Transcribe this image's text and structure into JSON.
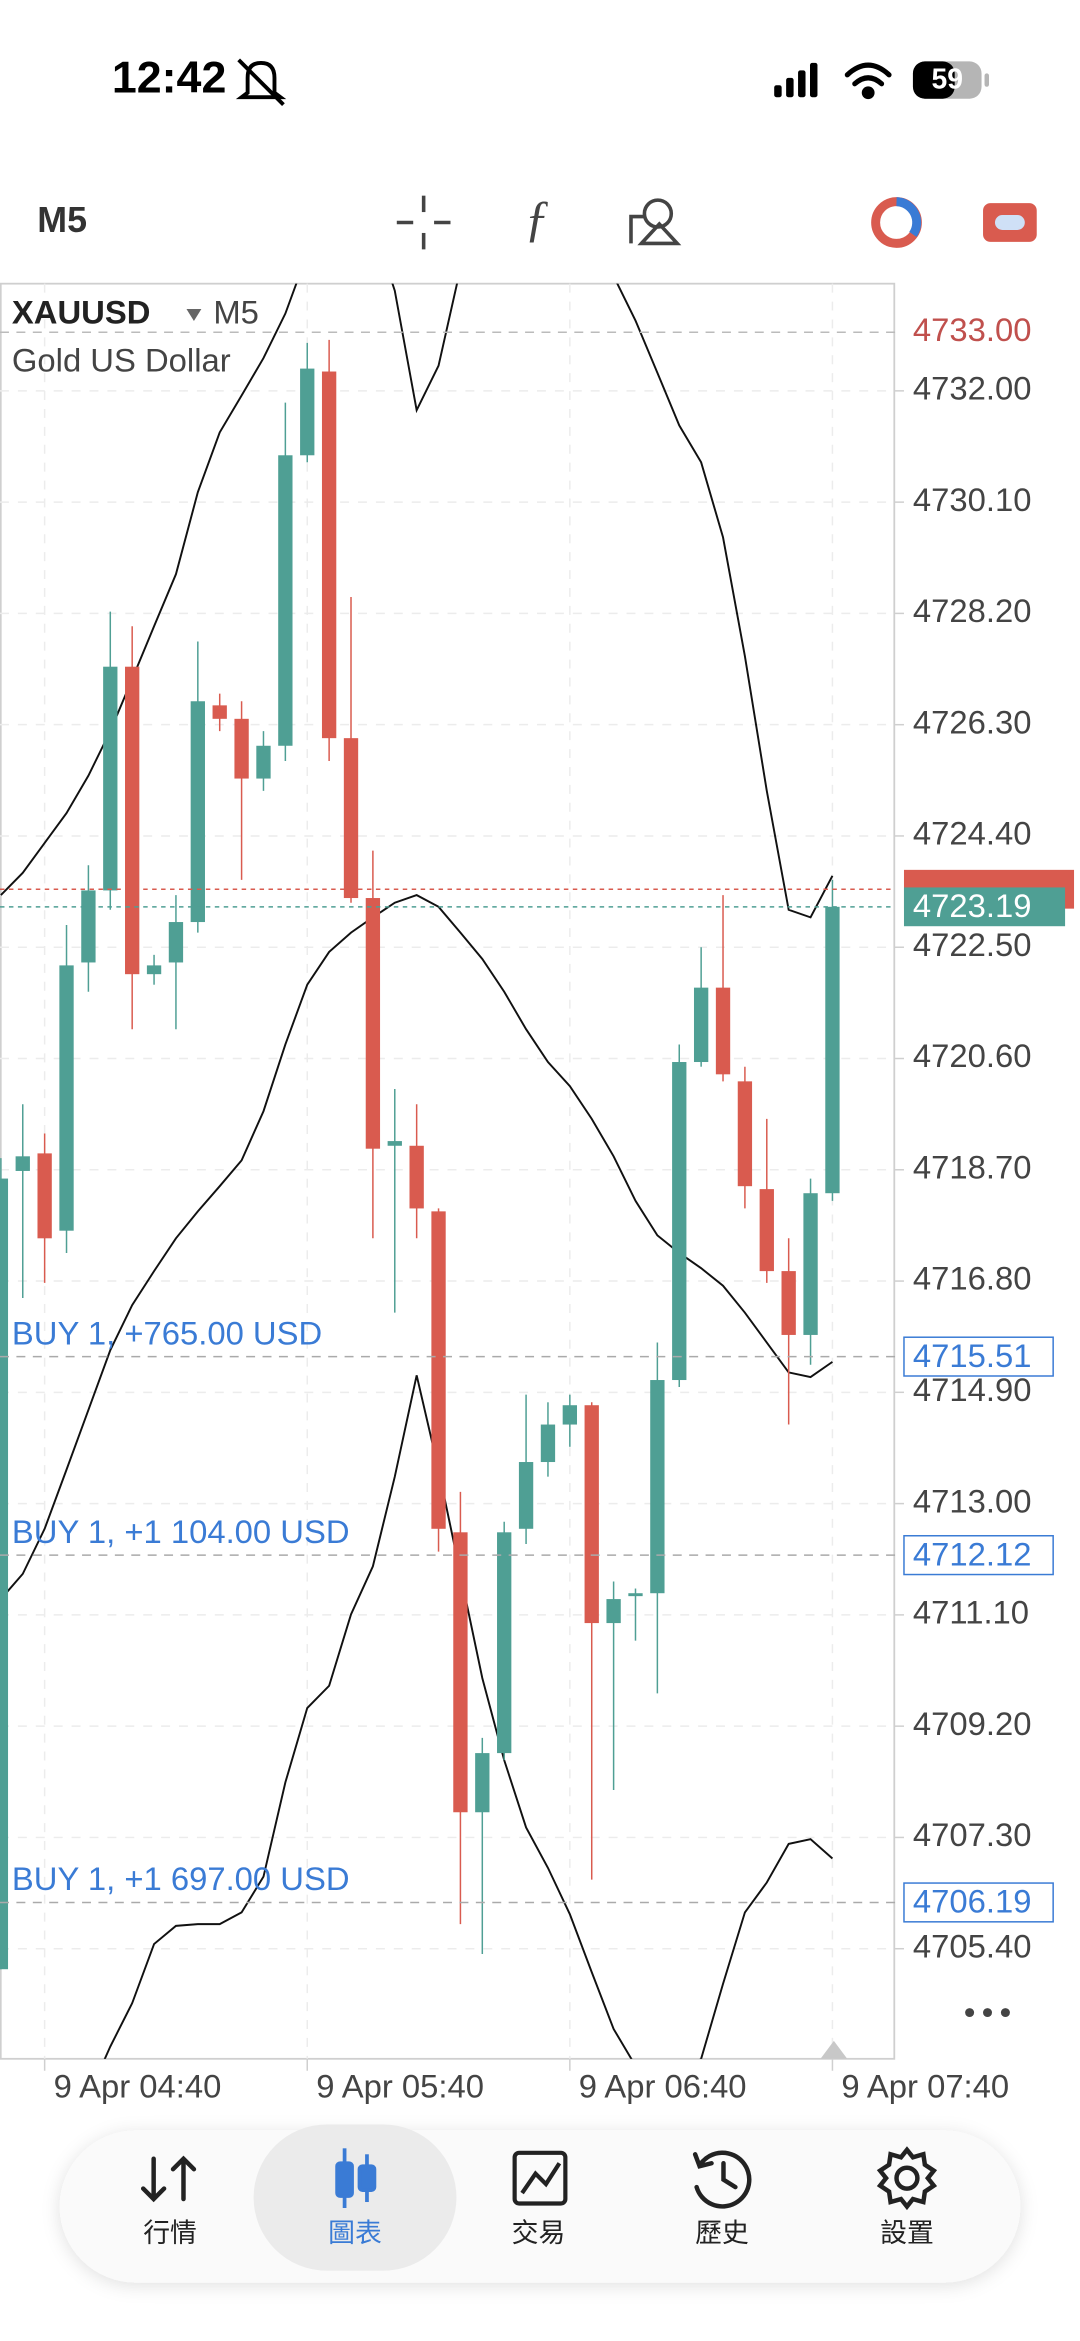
{
  "status_bar": {
    "time": "12:42",
    "battery": "59"
  },
  "toolbar": {
    "timeframe": "M5"
  },
  "chart_data": {
    "type": "candlestick",
    "symbol": "XAUUSD",
    "timeframe": "M5",
    "description": "Gold US Dollar",
    "up_color": "#4f9f94",
    "down_color": "#d95b4f",
    "candles": {
      "open": [
        4705.05,
        4718.68,
        4718.98,
        4717.66,
        4722.24,
        4723.47,
        4727.29,
        4722.04,
        4722.24,
        4722.93,
        4726.63,
        4726.4,
        4725.38,
        4725.94,
        4730.9,
        4732.33,
        4726.07,
        4723.34,
        4719.11,
        4719.11,
        4717.99,
        4712.51,
        4707.73,
        4708.74,
        4712.57,
        4713.71,
        4714.35,
        4714.68,
        4710.96,
        4711.42,
        4711.47,
        4715.11,
        4720.54,
        4721.81,
        4720.21,
        4718.37,
        4716.97,
        4715.88,
        4718.3
      ],
      "high": [
        4718.9,
        4719.82,
        4719.32,
        4722.88,
        4723.9,
        4728.23,
        4727.98,
        4722.37,
        4723.39,
        4727.72,
        4726.83,
        4726.7,
        4726.19,
        4731.8,
        4732.82,
        4732.87,
        4728.48,
        4724.15,
        4720.08,
        4719.82,
        4718.04,
        4713.2,
        4709.0,
        4712.69,
        4714.86,
        4714.73,
        4714.86,
        4714.73,
        4711.67,
        4711.55,
        4715.75,
        4720.84,
        4722.5,
        4723.39,
        4720.46,
        4719.57,
        4717.53,
        4718.55,
        4723.65
      ],
      "low": [
        4705.05,
        4716.51,
        4716.77,
        4717.28,
        4721.74,
        4723.14,
        4721.1,
        4721.86,
        4721.1,
        4722.75,
        4726.19,
        4723.65,
        4725.17,
        4725.68,
        4730.78,
        4725.68,
        4723.26,
        4717.53,
        4716.26,
        4717.53,
        4712.18,
        4705.82,
        4705.31,
        4708.62,
        4712.31,
        4713.46,
        4713.97,
        4706.58,
        4708.11,
        4710.66,
        4709.76,
        4714.99,
        4720.46,
        4720.21,
        4718.04,
        4716.77,
        4714.35,
        4715.37,
        4718.17
      ],
      "close": [
        4718.55,
        4718.93,
        4717.53,
        4722.19,
        4723.47,
        4727.29,
        4722.04,
        4722.19,
        4722.93,
        4726.7,
        4726.4,
        4725.38,
        4725.94,
        4730.9,
        4732.38,
        4726.07,
        4723.34,
        4719.06,
        4719.19,
        4718.04,
        4712.57,
        4707.73,
        4708.74,
        4712.51,
        4713.71,
        4714.35,
        4714.68,
        4710.96,
        4711.37,
        4711.47,
        4715.11,
        4720.54,
        4721.81,
        4720.33,
        4718.42,
        4716.97,
        4715.88,
        4718.3,
        4723.19
      ]
    },
    "bollinger": {
      "color": "#111111",
      "upper": [
        4723.39,
        4723.77,
        4724.28,
        4724.79,
        4725.43,
        4726.19,
        4727.08,
        4727.98,
        4728.87,
        4730.27,
        4731.29,
        4731.92,
        4732.56,
        4733.32,
        4734.34,
        4735.11,
        4735.36,
        4734.85,
        4733.71,
        4731.67,
        4732.43,
        4734.09,
        4735.11,
        4735.87,
        4736.38,
        4736.64,
        4736.38,
        4735.11,
        4733.96,
        4733.2,
        4732.31,
        4731.41,
        4730.78,
        4729.5,
        4727.47,
        4725.17,
        4723.14,
        4723.01,
        4723.72
      ],
      "middle": [
        4711.37,
        4711.8,
        4712.57,
        4713.58,
        4714.6,
        4715.62,
        4716.39,
        4716.97,
        4717.53,
        4717.99,
        4718.42,
        4718.86,
        4719.7,
        4720.84,
        4721.86,
        4722.42,
        4722.75,
        4723.01,
        4723.26,
        4723.39,
        4723.19,
        4722.75,
        4722.3,
        4721.74,
        4721.1,
        4720.54,
        4720.13,
        4719.57,
        4718.93,
        4718.17,
        4717.58,
        4717.28,
        4717.02,
        4716.72,
        4716.26,
        4715.75,
        4715.24,
        4715.16,
        4715.42
      ],
      "lower": [
        4698.94,
        4699.96,
        4700.98,
        4701.99,
        4702.89,
        4703.73,
        4704.47,
        4705.48,
        4705.79,
        4705.82,
        4705.82,
        4706.02,
        4706.63,
        4708.24,
        4709.51,
        4709.89,
        4711.11,
        4711.93,
        4713.46,
        4715.19,
        4713.58,
        4711.8,
        4710.02,
        4708.62,
        4707.47,
        4706.78,
        4705.99,
        4705.0,
        4704.03,
        4703.4,
        4703.14,
        4703.22,
        4703.52,
        4704.8,
        4706.02,
        4706.53,
        4707.19,
        4707.27,
        4706.94
      ]
    },
    "ylim": [
      4703.52,
      4733.83
    ],
    "yticks": [
      {
        "value": 4732,
        "label": "4732.00"
      },
      {
        "value": 4730.1,
        "label": "4730.10"
      },
      {
        "value": 4728.2,
        "label": "4728.20"
      },
      {
        "value": 4726.3,
        "label": "4726.30"
      },
      {
        "value": 4724.4,
        "label": "4724.40"
      },
      {
        "value": 4722.5,
        "label": "4722.50"
      },
      {
        "value": 4720.6,
        "label": "4720.60"
      },
      {
        "value": 4718.7,
        "label": "4718.70"
      },
      {
        "value": 4716.8,
        "label": "4716.80"
      },
      {
        "value": 4714.9,
        "label": "4714.90"
      },
      {
        "value": 4713,
        "label": "4713.00"
      },
      {
        "value": 4711.1,
        "label": "4711.10"
      },
      {
        "value": 4709.2,
        "label": "4709.20"
      },
      {
        "value": 4707.3,
        "label": "4707.30"
      },
      {
        "value": 4705.4,
        "label": "4705.40"
      }
    ],
    "xlim": [
      -0.04,
      40.86
    ],
    "xticks": [
      {
        "value": 2,
        "label": "9 Apr 04:40"
      },
      {
        "value": 14,
        "label": "9 Apr 05:40"
      },
      {
        "value": 26,
        "label": "9 Apr 06:40"
      },
      {
        "value": 38,
        "label": "9 Apr 07:40"
      }
    ],
    "grid": true,
    "high_line": {
      "value": 4733,
      "label": "4733.00",
      "color": "#c0504d"
    },
    "bid_line": {
      "value": 4723.19,
      "label": "4723.19",
      "color": "#4f9f94"
    },
    "ask_line": {
      "value": 4723.49,
      "color": "#d95b4f"
    },
    "orders": [
      {
        "label": "BUY 1, +765.00 USD",
        "price": 4715.51,
        "price_label": "4715.51"
      },
      {
        "label": "BUY 1, +1 104.00 USD",
        "price": 4712.12,
        "price_label": "4712.12"
      },
      {
        "label": "BUY 1, +1 697.00 USD",
        "price": 4706.19,
        "price_label": "4706.19"
      }
    ],
    "order_color": "#3a7bd5"
  },
  "nav": [
    {
      "label": "行情"
    },
    {
      "label": "圖表",
      "active": true
    },
    {
      "label": "交易"
    },
    {
      "label": "歷史"
    },
    {
      "label": "設置"
    }
  ]
}
